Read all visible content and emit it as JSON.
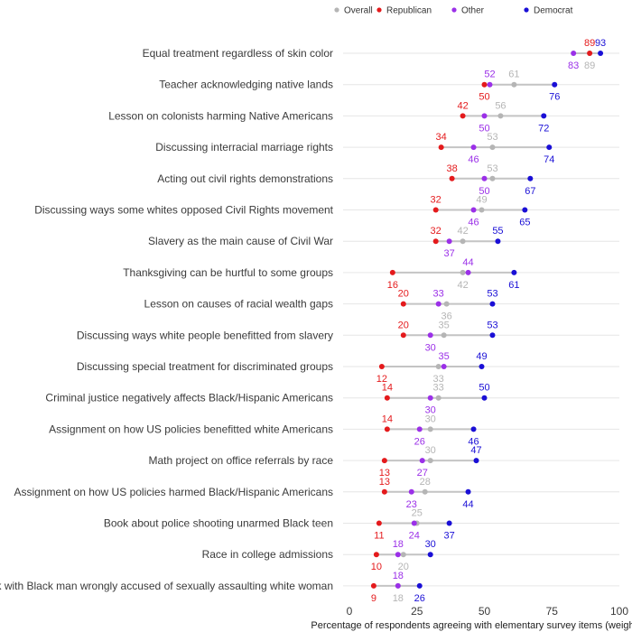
{
  "chart_data": {
    "type": "dot",
    "xlabel": "Percentage of respondents agreeing with elementary survey items (weighted)",
    "xlim": [
      0,
      100
    ],
    "xticks": [
      0,
      25,
      50,
      75,
      100
    ],
    "legend": [
      {
        "name": "Overall",
        "key": "overall",
        "color": "#b5b5b5"
      },
      {
        "name": "Republican",
        "key": "republican",
        "color": "#e41a1c"
      },
      {
        "name": "Other",
        "key": "other",
        "color": "#9b30e8"
      },
      {
        "name": "Democrat",
        "key": "democrat",
        "color": "#1a0fd6"
      }
    ],
    "items": [
      {
        "label": "Equal treatment regardless of skin color",
        "republican": 89,
        "other": 83,
        "overall": 89,
        "democrat": 93
      },
      {
        "label": "Teacher acknowledging native lands",
        "republican": 50,
        "other": 52,
        "overall": 61,
        "democrat": 76
      },
      {
        "label": "Lesson on colonists harming Native Americans",
        "republican": 42,
        "other": 50,
        "overall": 56,
        "democrat": 72
      },
      {
        "label": "Discussing interracial marriage rights",
        "republican": 34,
        "other": 46,
        "overall": 53,
        "democrat": 74
      },
      {
        "label": "Acting out civil rights demonstrations",
        "republican": 38,
        "other": 50,
        "overall": 53,
        "democrat": 67
      },
      {
        "label": "Discussing ways some  whites opposed Civil Rights movement",
        "republican": 32,
        "other": 46,
        "overall": 49,
        "democrat": 65
      },
      {
        "label": "Slavery as the main cause of Civil War",
        "republican": 32,
        "other": 37,
        "overall": 42,
        "democrat": 55
      },
      {
        "label": "Thanksgiving can be hurtful to some groups",
        "republican": 16,
        "other": 44,
        "overall": 42,
        "democrat": 61
      },
      {
        "label": "Lesson on causes of racial wealth gaps",
        "republican": 20,
        "other": 33,
        "overall": 36,
        "democrat": 53
      },
      {
        "label": "Discussing ways  white people benefitted from slavery",
        "republican": 20,
        "other": 30,
        "overall": 35,
        "democrat": 53
      },
      {
        "label": "Discussing special treatment for discriminated groups",
        "republican": 12,
        "other": 35,
        "overall": 33,
        "democrat": 49
      },
      {
        "label": "Criminal justice negatively affects Black/Hispanic Americans",
        "republican": 14,
        "other": 30,
        "overall": 33,
        "democrat": 50
      },
      {
        "label": "Assignment on how US policies benefitted  white Americans",
        "republican": 14,
        "other": 26,
        "overall": 30,
        "democrat": 46
      },
      {
        "label": "Math project on office referrals by race",
        "republican": 13,
        "other": 27,
        "overall": 30,
        "democrat": 47
      },
      {
        "label": "Assignment on how US policies harmed Black/Hispanic Americans",
        "republican": 13,
        "other": 23,
        "overall": 28,
        "democrat": 44
      },
      {
        "label": "Book about police shooting unarmed Black teen",
        "republican": 11,
        "other": 24,
        "overall": 25,
        "democrat": 37
      },
      {
        "label": "Race in college admissions",
        "republican": 10,
        "other": 18,
        "overall": 20,
        "democrat": 30
      },
      {
        "label": "Book with Black man wrongly accused of sexually assaulting  white woman",
        "republican": 9,
        "other": 18,
        "overall": 18,
        "democrat": 26
      }
    ]
  }
}
